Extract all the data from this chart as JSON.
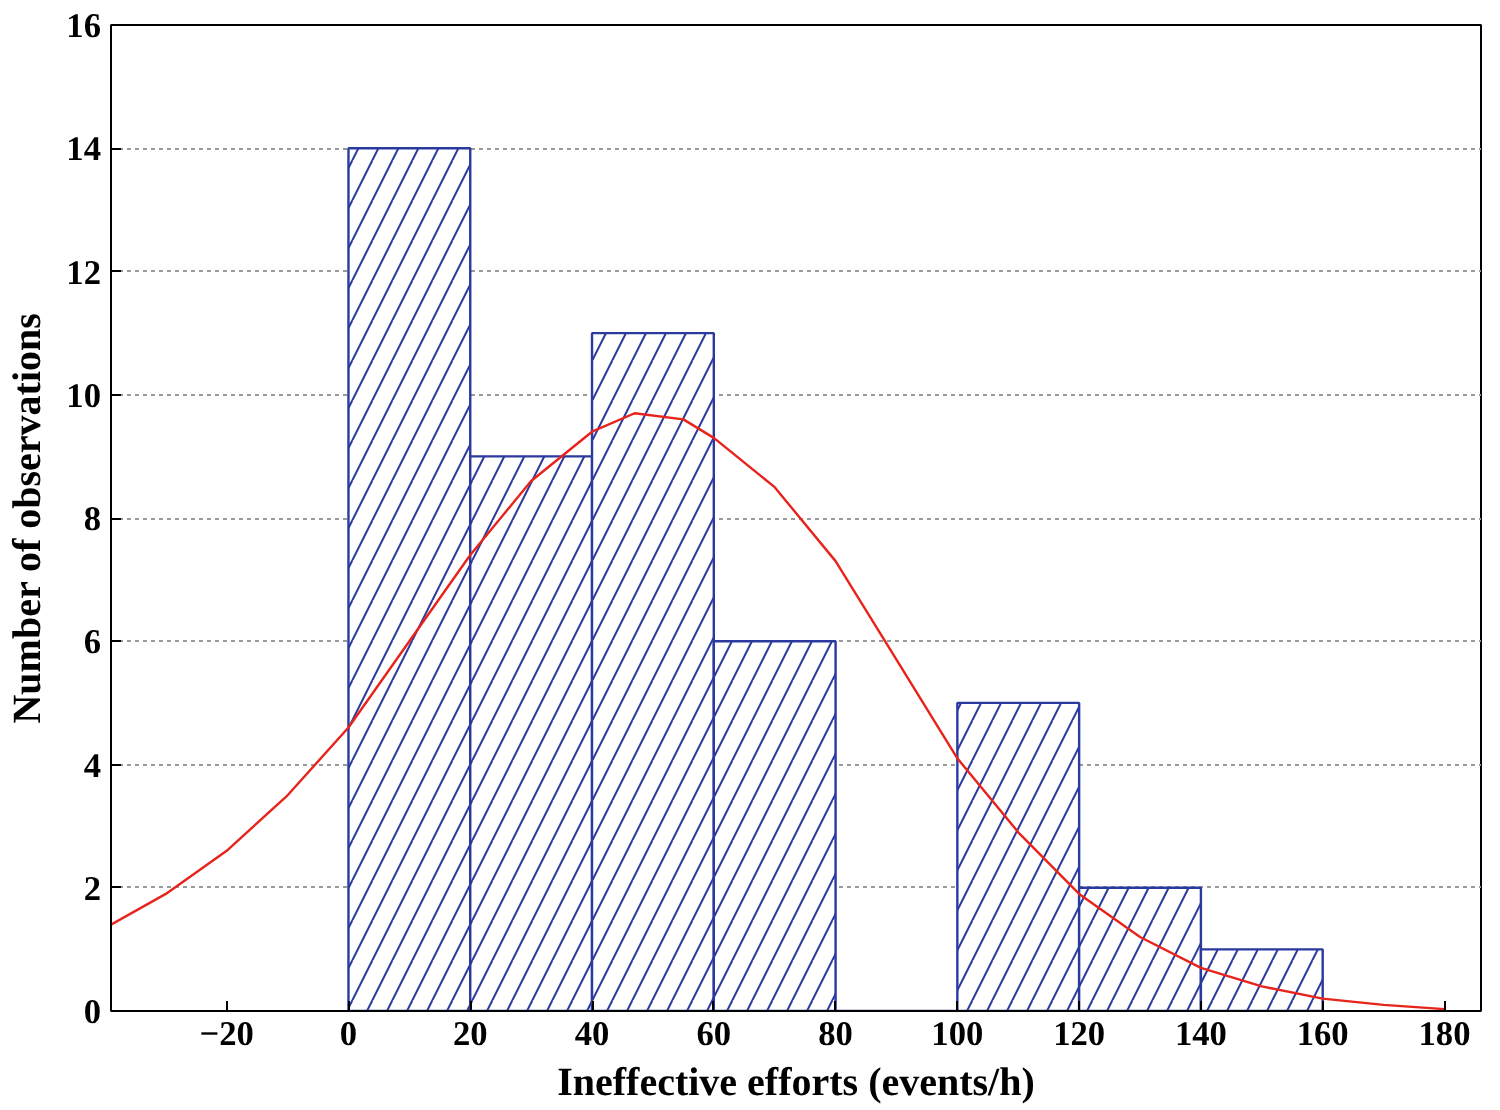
{
  "chart_data": {
    "type": "histogram",
    "xlabel": "Ineffective efforts (events/h)",
    "ylabel": "Number of observations",
    "bins": [
      0,
      20,
      40,
      60,
      80,
      100,
      120,
      140,
      160
    ],
    "values": [
      14,
      9,
      11,
      6,
      0,
      5,
      2,
      1
    ],
    "color": "#2b3a9e",
    "series": [
      {
        "type": "line",
        "color": "#e8231b",
        "x": [
          -39,
          -30,
          -20,
          -10,
          0,
          10,
          20,
          30,
          40,
          47,
          55,
          60,
          70,
          80,
          90,
          100,
          110,
          120,
          130,
          140,
          150,
          160,
          170,
          180
        ],
        "values": [
          1.4,
          1.9,
          2.6,
          3.5,
          4.6,
          6.0,
          7.4,
          8.6,
          9.4,
          9.7,
          9.6,
          9.3,
          8.5,
          7.3,
          5.7,
          4.1,
          2.9,
          1.9,
          1.2,
          0.7,
          0.4,
          0.2,
          0.1,
          0.03
        ]
      }
    ],
    "xlim": [
      -39,
      186
    ],
    "ylim": [
      0,
      16
    ],
    "xticks": [
      -20,
      0,
      20,
      40,
      60,
      80,
      100,
      120,
      140,
      160,
      180
    ],
    "yticks": [
      0,
      2,
      4,
      6,
      8,
      10,
      12,
      14,
      16
    ],
    "grid": "y"
  }
}
